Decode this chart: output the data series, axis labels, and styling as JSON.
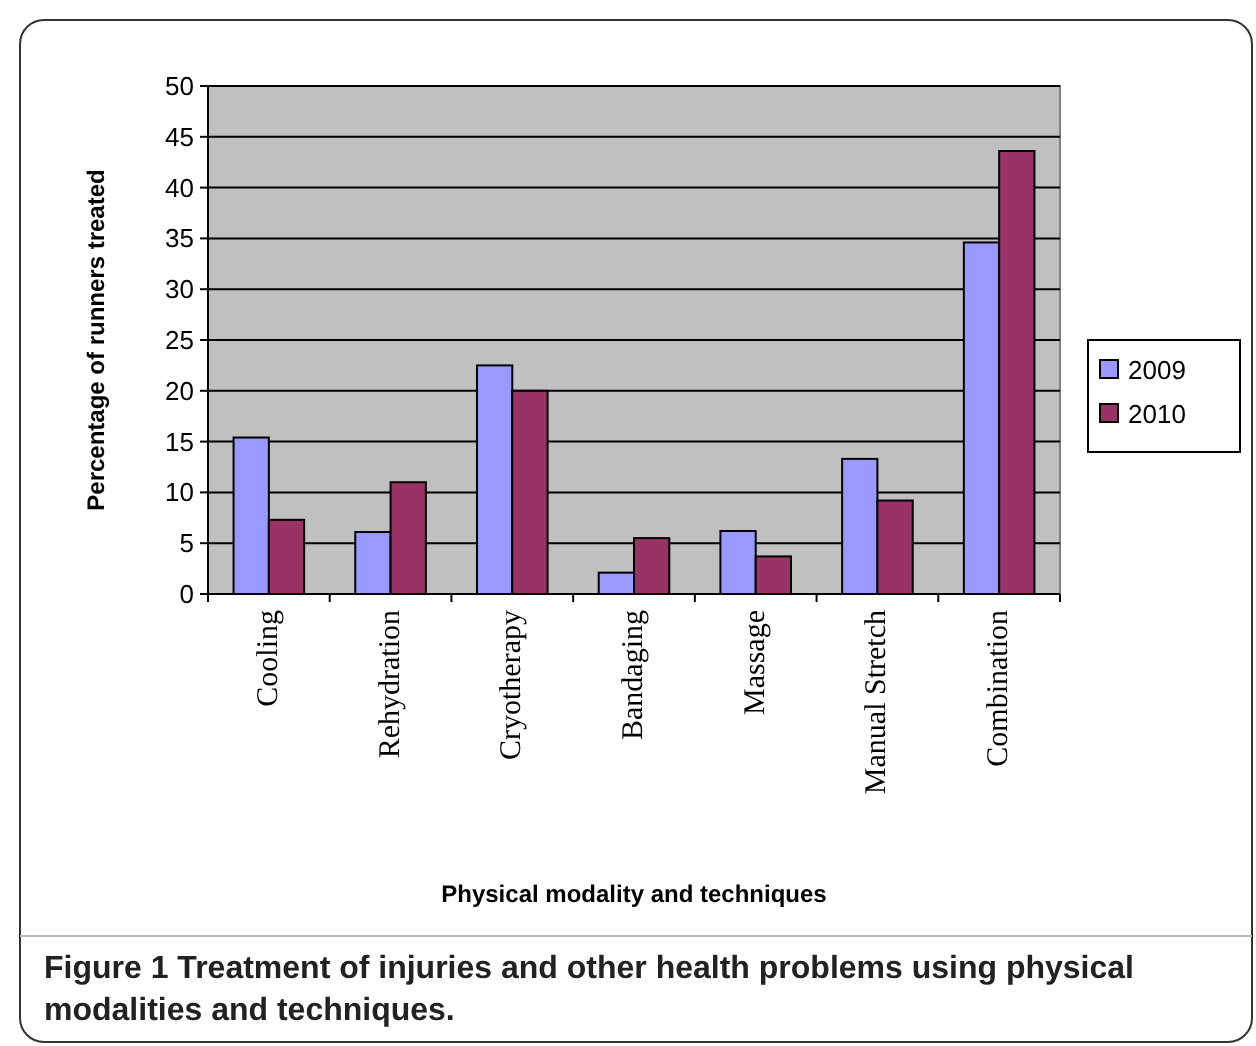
{
  "chart_data": {
    "type": "bar",
    "categories": [
      "Cooling",
      "Rehydration",
      "Cryotherapy",
      "Bandaging",
      "Massage",
      "Manual Stretch",
      "Combination"
    ],
    "series": [
      {
        "name": "2009",
        "color": "#9999ff",
        "values": [
          15.4,
          6.1,
          22.5,
          2.1,
          6.2,
          13.3,
          34.6
        ]
      },
      {
        "name": "2010",
        "color": "#993366",
        "values": [
          7.3,
          11,
          20,
          5.5,
          3.7,
          9.2,
          43.6
        ]
      }
    ],
    "xlabel": "Physical modality and techniques",
    "ylabel": "Percentage of runners treated",
    "ylim": [
      0,
      50
    ],
    "yticks": [
      0,
      5,
      10,
      15,
      20,
      25,
      30,
      35,
      40,
      45,
      50
    ],
    "grid": "y",
    "legend": "right",
    "annotations": [
      "Figure 1 Treatment of injuries and other health problems using physical modalities and techniques."
    ]
  }
}
